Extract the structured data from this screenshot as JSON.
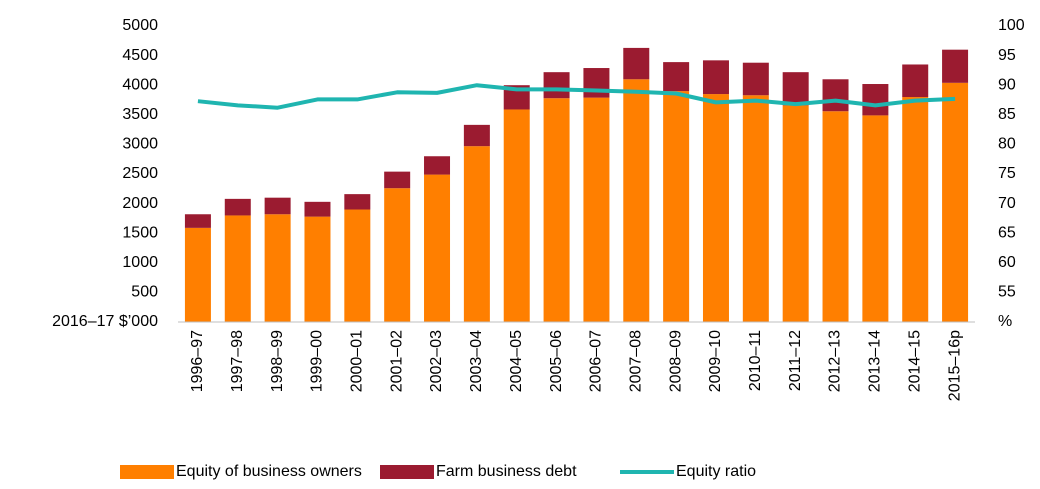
{
  "chart_data": {
    "type": "bar",
    "stacked": true,
    "y_label": "2016–17 $’000",
    "y2_label": "%",
    "categories": [
      "1996–97",
      "1997–98",
      "1998–99",
      "1999–00",
      "2000–01",
      "2001–02",
      "2002–03",
      "2003–04",
      "2004–05",
      "2005–06",
      "2006–07",
      "2007–08",
      "2008–09",
      "2009–10",
      "2010–11",
      "2011–12",
      "2012–13",
      "2013–14",
      "2014–15",
      "2015–16p"
    ],
    "series": [
      {
        "name": "Equity of business owners",
        "type": "bar",
        "color": "#ff7f00",
        "values": [
          1590,
          1800,
          1820,
          1780,
          1900,
          2260,
          2490,
          2970,
          3590,
          3780,
          3790,
          4100,
          3900,
          3850,
          3830,
          3660,
          3560,
          3490,
          3800,
          4040
        ]
      },
      {
        "name": "Farm business debt",
        "type": "bar",
        "color": "#9b1b30",
        "values": [
          230,
          280,
          280,
          250,
          260,
          280,
          310,
          360,
          410,
          440,
          500,
          530,
          490,
          570,
          550,
          560,
          540,
          530,
          550,
          560
        ]
      },
      {
        "name": "Equity ratio",
        "type": "line",
        "axis": "y2",
        "color": "#1fb5b0",
        "values": [
          87.3,
          86.6,
          86.2,
          87.6,
          87.6,
          88.8,
          88.7,
          90.0,
          89.3,
          89.3,
          89.1,
          88.9,
          88.6,
          87.1,
          87.4,
          86.8,
          87.4,
          86.6,
          87.4,
          87.7
        ]
      }
    ],
    "ylim": [
      0,
      5000
    ],
    "yticks": [
      500,
      1000,
      1500,
      2000,
      2500,
      3000,
      3500,
      4000,
      4500,
      5000
    ],
    "y2lim": [
      50,
      100
    ],
    "y2ticks": [
      55,
      60,
      65,
      70,
      75,
      80,
      85,
      90,
      95,
      100
    ],
    "legend": "bottom"
  }
}
